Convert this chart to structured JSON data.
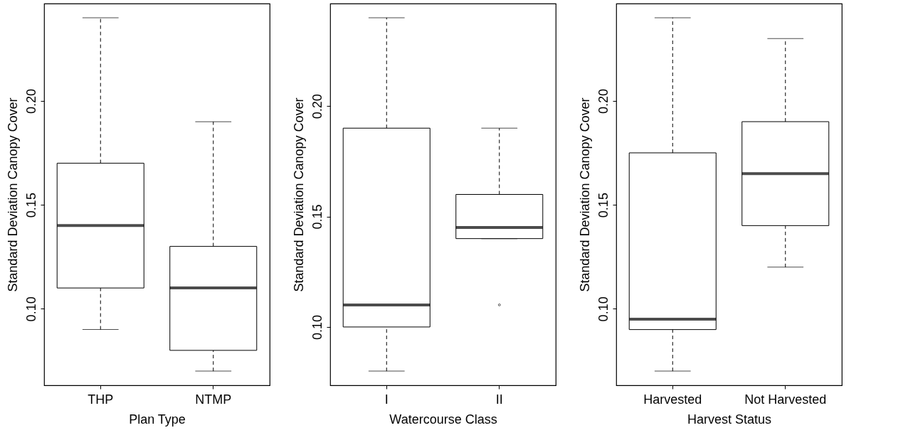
{
  "chart_data": [
    {
      "type": "box",
      "xlabel": "Plan Type",
      "ylabel": "Standard Deviation Canopy Cover",
      "categories": [
        "THP",
        "NTMP"
      ],
      "boxes": [
        {
          "low": 0.09,
          "q1": 0.11,
          "median": 0.14,
          "q3": 0.17,
          "high": 0.24
        },
        {
          "low": 0.07,
          "q1": 0.08,
          "median": 0.11,
          "q3": 0.13,
          "high": 0.19
        }
      ],
      "ylim": [
        0.0632,
        0.2468
      ],
      "yticks": [
        {
          "value": 0.1,
          "label": "0.10"
        },
        {
          "value": 0.15,
          "label": "0.15"
        },
        {
          "value": 0.2,
          "label": "0.20"
        }
      ]
    },
    {
      "type": "box",
      "xlabel": "Watercourse Class",
      "ylabel": "Standard Deviation Canopy Cover",
      "categories": [
        "I",
        "II"
      ],
      "boxes": [
        {
          "low": 0.08,
          "q1": 0.1,
          "median": 0.11,
          "q3": 0.19,
          "high": 0.24
        },
        {
          "low": 0.14,
          "q1": 0.14,
          "median": 0.145,
          "q3": 0.16,
          "high": 0.19,
          "outliers": [
            0.11
          ]
        }
      ],
      "ylim": [
        0.0736,
        0.2464
      ],
      "yticks": [
        {
          "value": 0.1,
          "label": "0.10"
        },
        {
          "value": 0.15,
          "label": "0.15"
        },
        {
          "value": 0.2,
          "label": "0.20"
        }
      ]
    },
    {
      "type": "box",
      "xlabel": "Harvest Status",
      "ylabel": "Standard Deviation Canopy Cover",
      "categories": [
        "Harvested",
        "Not Harvested"
      ],
      "boxes": [
        {
          "low": 0.07,
          "q1": 0.09,
          "median": 0.095,
          "q3": 0.175,
          "high": 0.24
        },
        {
          "low": 0.12,
          "q1": 0.14,
          "median": 0.165,
          "q3": 0.19,
          "high": 0.23
        }
      ],
      "ylim": [
        0.0632,
        0.2468
      ],
      "yticks": [
        {
          "value": 0.1,
          "label": "0.10"
        },
        {
          "value": 0.15,
          "label": "0.15"
        },
        {
          "value": 0.2,
          "label": "0.20"
        }
      ]
    }
  ]
}
